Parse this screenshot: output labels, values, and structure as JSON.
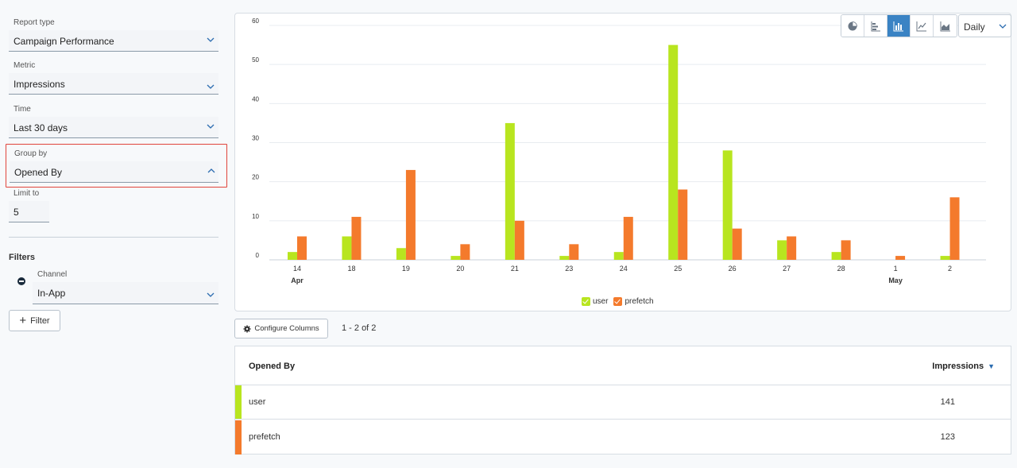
{
  "controls": {
    "report_type": {
      "label": "Report type",
      "value": "Campaign Performance"
    },
    "metric": {
      "label": "Metric",
      "value": "Impressions"
    },
    "time": {
      "label": "Time",
      "value": "Last 30 days"
    },
    "group_by": {
      "label": "Group by",
      "value": "Opened By"
    },
    "limit": {
      "label": "Limit to",
      "value": "5"
    }
  },
  "filters": {
    "title": "Filters",
    "channel": {
      "label": "Channel",
      "value": "In-App"
    },
    "add_label": "Filter"
  },
  "toolbar": {
    "chart_types": [
      "pie-chart-icon",
      "horizontal-bar-icon",
      "bar-chart-icon",
      "line-chart-icon",
      "area-chart-icon"
    ],
    "active_type": "bar-chart-icon",
    "period": "Daily"
  },
  "chart_data": {
    "type": "bar",
    "categories": [
      "14",
      "18",
      "19",
      "20",
      "21",
      "23",
      "24",
      "25",
      "26",
      "27",
      "28",
      "1",
      "2"
    ],
    "month_labels": {
      "14": "Apr",
      "1": "May"
    },
    "series": [
      {
        "name": "user",
        "color": "#b8e51f",
        "values": [
          2,
          6,
          3,
          1,
          35,
          1,
          2,
          55,
          28,
          5,
          2,
          0,
          1
        ]
      },
      {
        "name": "prefetch",
        "color": "#f47a2c",
        "values": [
          6,
          11,
          23,
          4,
          10,
          4,
          11,
          18,
          8,
          6,
          5,
          1,
          16
        ]
      }
    ],
    "ylim": [
      0,
      60
    ],
    "yticks": [
      0,
      10,
      20,
      30,
      40,
      50,
      60
    ],
    "legend": "bottom-center",
    "grid": true
  },
  "table": {
    "config_label": "Configure Columns",
    "pager": "1 - 2 of 2",
    "headers": {
      "name": "Opened By",
      "value": "Impressions"
    },
    "rows": [
      {
        "name": "user",
        "value": "141",
        "color": "#b8e51f"
      },
      {
        "name": "prefetch",
        "value": "123",
        "color": "#f47a2c"
      }
    ]
  }
}
